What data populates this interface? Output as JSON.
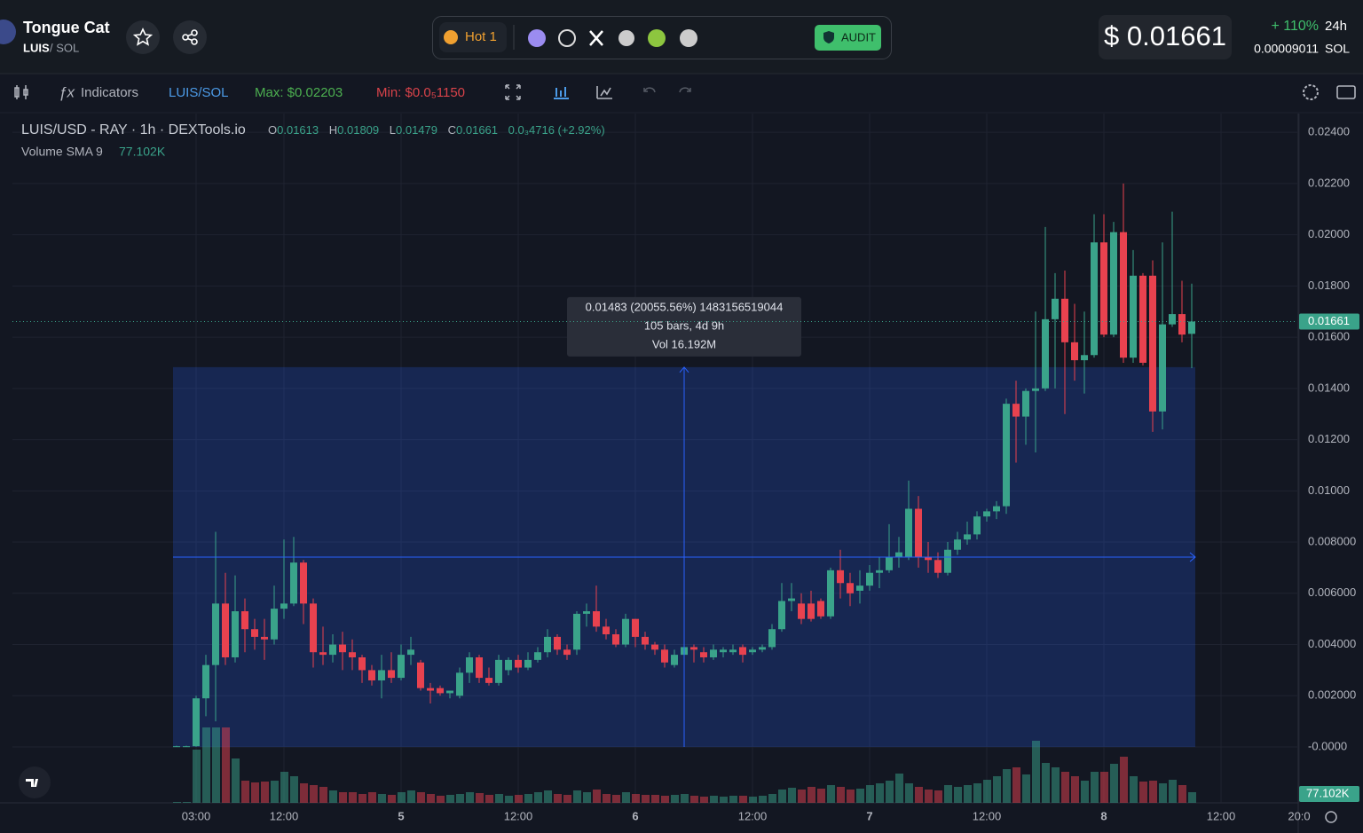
{
  "header": {
    "token_name": "Tongue Cat",
    "symbol": "LUIS",
    "pair": "/ SOL",
    "hot": "Hot 1",
    "audit": "AUDIT",
    "price": "$ 0.01661",
    "change": "+ 110%",
    "period": "24h",
    "price_native": "0.00009011",
    "native": "SOL"
  },
  "toolbar": {
    "indicators": "Indicators",
    "pair": "LUIS/SOL",
    "max": "Max: $0.02203",
    "min": "Min: $0.0₅1150"
  },
  "chart_data": {
    "type": "candlestick",
    "title": "LUIS/USD - RAY · 1h · DEXTools.io",
    "ohlc_letters": [
      "O",
      "H",
      "L",
      "C"
    ],
    "change_label": "0.0₃4716 (+2.92%)",
    "volume_label": "Volume SMA 9",
    "volume_sma": 77102,
    "volume_sma_label": "77.102K",
    "up_color": "#3aa38a",
    "down_color": "#e8424f",
    "categories": [
      null,
      null,
      "03:00",
      null,
      null,
      null,
      null,
      null,
      null,
      null,
      null,
      "12:00",
      null,
      null,
      null,
      null,
      null,
      null,
      null,
      null,
      null,
      null,
      null,
      "5",
      null,
      null,
      null,
      null,
      null,
      null,
      null,
      null,
      null,
      null,
      null,
      "12:00",
      null,
      null,
      null,
      null,
      null,
      null,
      null,
      null,
      null,
      null,
      null,
      "6",
      null,
      null,
      null,
      null,
      null,
      null,
      null,
      null,
      null,
      null,
      null,
      "12:00",
      null,
      null,
      null,
      null,
      null,
      null,
      null,
      null,
      null,
      null,
      null,
      "7",
      null,
      null,
      null,
      null,
      null,
      null,
      null,
      null,
      null,
      null,
      null,
      "12:00",
      null,
      null,
      null,
      null,
      null,
      null,
      null,
      null,
      null,
      null,
      null,
      "8",
      null,
      null,
      null,
      null,
      null,
      null,
      null,
      null,
      null,
      null,
      null,
      "12:00",
      null,
      null,
      null,
      null,
      null,
      null,
      null,
      "20:0"
    ],
    "open": [
      3e-05,
      3e-05,
      3e-05,
      0.0019,
      0.0032,
      0.0056,
      0.0035,
      0.0053,
      0.0046,
      0.0043,
      0.0042,
      0.0054,
      0.0056,
      0.0072,
      0.0056,
      0.0037,
      0.0036,
      0.004,
      0.0037,
      0.0035,
      0.003,
      0.0026,
      0.003,
      0.0027,
      0.0036,
      0.0033,
      0.0023,
      0.0023,
      0.0021,
      0.002,
      0.0029,
      0.0035,
      0.0027,
      0.0025,
      0.003,
      0.0034,
      0.0031,
      0.0034,
      0.0037,
      0.0043,
      0.0038,
      0.0038,
      0.0052,
      0.0053,
      0.0047,
      0.0044,
      0.004,
      0.005,
      0.0043,
      0.004,
      0.0038,
      0.0032,
      0.0036,
      0.0039,
      0.0037,
      0.0035,
      0.0037,
      0.0037,
      0.0039,
      0.0037,
      0.0038,
      0.0039,
      0.0046,
      0.0057,
      0.0056,
      0.0056,
      0.0057,
      0.0051,
      0.0069,
      0.0064,
      0.0061,
      0.0063,
      0.0068,
      0.0069,
      0.0074,
      0.0074,
      0.0093,
      0.0074,
      0.0073,
      0.0068,
      0.0077,
      0.0081,
      0.0083,
      0.009,
      0.0092,
      0.0094,
      0.0134,
      0.0129,
      0.0139,
      0.014,
      0.0167,
      0.0175,
      0.0158,
      0.0151,
      0.0153,
      0.0197,
      0.0161,
      0.0201,
      0.0152,
      0.0184,
      0.0184,
      0.0131,
      0.0165,
      0.0169,
      0.01613,
      null,
      null,
      null,
      null,
      null,
      null,
      null,
      null,
      null,
      null,
      null
    ],
    "high": [
      5e-05,
      5e-05,
      0.002,
      0.0036,
      0.0084,
      0.0068,
      0.0067,
      0.0058,
      0.005,
      0.005,
      0.0063,
      0.0081,
      0.0082,
      0.0073,
      0.0058,
      0.0047,
      0.0044,
      0.0045,
      0.0042,
      0.0036,
      0.0032,
      0.0036,
      0.0037,
      0.004,
      0.0043,
      0.0034,
      0.0025,
      0.0024,
      0.0022,
      0.0031,
      0.0037,
      0.0036,
      0.0031,
      0.0036,
      0.0035,
      0.0036,
      0.0037,
      0.0039,
      0.0046,
      0.0044,
      0.004,
      0.0053,
      0.0056,
      0.0063,
      0.005,
      0.0046,
      0.0052,
      0.005,
      0.0045,
      0.0041,
      0.004,
      0.0038,
      0.0042,
      0.004,
      0.0039,
      0.004,
      0.0039,
      0.004,
      0.004,
      0.0039,
      0.004,
      0.0048,
      0.0064,
      0.0064,
      0.006,
      0.0061,
      0.0058,
      0.007,
      0.0077,
      0.0068,
      0.0069,
      0.0071,
      0.0074,
      0.0087,
      0.0082,
      0.0104,
      0.0098,
      0.008,
      0.0076,
      0.008,
      0.0084,
      0.0088,
      0.0092,
      0.0093,
      0.0096,
      0.0136,
      0.0143,
      0.014,
      0.017,
      0.0203,
      0.0185,
      0.0186,
      0.0173,
      0.017,
      0.0208,
      0.0208,
      0.0205,
      0.022,
      0.0194,
      0.0185,
      0.019,
      0.0197,
      0.0209,
      0.0182,
      0.01809,
      null,
      null,
      null,
      null,
      null,
      null,
      null,
      null,
      null,
      null,
      null
    ],
    "low": [
      1e-05,
      1e-05,
      1e-05,
      0.0012,
      0.001,
      0.0032,
      0.0033,
      0.0037,
      0.0038,
      0.0034,
      0.004,
      0.005,
      0.0055,
      0.0048,
      0.0031,
      0.0032,
      0.0033,
      0.003,
      0.003,
      0.0025,
      0.0024,
      0.0019,
      0.0025,
      0.0026,
      0.0032,
      0.0022,
      0.0017,
      0.002,
      0.0019,
      0.0019,
      0.0025,
      0.0025,
      0.0024,
      0.0024,
      0.0028,
      0.0029,
      0.003,
      0.0033,
      0.0035,
      0.0036,
      0.0034,
      0.0036,
      0.0047,
      0.0045,
      0.0042,
      0.0039,
      0.0039,
      0.0039,
      0.0038,
      0.0036,
      0.0031,
      0.0031,
      0.0032,
      0.0033,
      0.0033,
      0.0034,
      0.0035,
      0.0036,
      0.0033,
      0.0036,
      0.0037,
      0.0038,
      0.0045,
      0.0053,
      0.0048,
      0.0049,
      0.005,
      0.005,
      0.0058,
      0.0055,
      0.0056,
      0.0061,
      0.0062,
      0.0068,
      0.007,
      0.0073,
      0.007,
      0.0068,
      0.0066,
      0.0067,
      0.0075,
      0.0079,
      0.0081,
      0.0088,
      0.0089,
      0.0091,
      0.0111,
      0.0118,
      0.0115,
      0.0139,
      0.014,
      0.013,
      0.0143,
      0.0138,
      0.0152,
      0.016,
      0.016,
      0.015,
      0.015,
      0.0149,
      0.0123,
      0.0124,
      0.0164,
      0.0158,
      0.01479,
      null,
      null,
      null,
      null,
      null,
      null,
      null,
      null,
      null,
      null,
      null
    ],
    "close": [
      3e-05,
      3e-05,
      0.0019,
      0.0032,
      0.0056,
      0.0035,
      0.0053,
      0.0046,
      0.0043,
      0.0042,
      0.0054,
      0.0056,
      0.0072,
      0.0056,
      0.0037,
      0.0036,
      0.004,
      0.0037,
      0.0035,
      0.003,
      0.0026,
      0.003,
      0.0027,
      0.0036,
      0.0038,
      0.0023,
      0.0022,
      0.0021,
      0.0022,
      0.0029,
      0.0035,
      0.0027,
      0.0025,
      0.0034,
      0.0034,
      0.0031,
      0.0034,
      0.0037,
      0.0043,
      0.0038,
      0.0036,
      0.0052,
      0.0053,
      0.0047,
      0.0044,
      0.004,
      0.005,
      0.0043,
      0.004,
      0.0038,
      0.0033,
      0.0036,
      0.0039,
      0.0038,
      0.0035,
      0.0038,
      0.0038,
      0.0038,
      0.0036,
      0.0038,
      0.0039,
      0.0046,
      0.0057,
      0.0058,
      0.005,
      0.005,
      0.0051,
      0.0069,
      0.0064,
      0.006,
      0.0063,
      0.0068,
      0.0069,
      0.0074,
      0.0076,
      0.0093,
      0.0074,
      0.0073,
      0.0068,
      0.0077,
      0.0081,
      0.0083,
      0.009,
      0.0092,
      0.0094,
      0.0134,
      0.0129,
      0.0139,
      0.014,
      0.0167,
      0.0175,
      0.0158,
      0.0151,
      0.0153,
      0.0197,
      0.0161,
      0.0201,
      0.0152,
      0.0184,
      0.015,
      0.0131,
      0.0165,
      0.0169,
      0.0161,
      0.01661,
      null,
      null,
      null,
      null,
      null,
      null,
      null,
      null,
      null,
      null,
      null
    ],
    "volume": [
      7700,
      7700,
      462000,
      654500,
      654500,
      654500,
      385000,
      192500,
      177100,
      184800,
      192500,
      269500,
      231000,
      169400,
      154000,
      138600,
      107800,
      92400,
      92400,
      77000,
      92400,
      77000,
      69300,
      92400,
      107800,
      92400,
      77000,
      61600,
      69300,
      77000,
      92400,
      84700,
      69300,
      77000,
      61600,
      69300,
      77000,
      92400,
      107800,
      77000,
      69300,
      107800,
      92400,
      115500,
      77000,
      69300,
      92400,
      77000,
      69300,
      69300,
      61600,
      69300,
      77000,
      61600,
      53900,
      61600,
      53900,
      61600,
      61600,
      53900,
      61600,
      77000,
      115500,
      130900,
      115500,
      138600,
      123200,
      154000,
      138600,
      115500,
      123200,
      154000,
      169400,
      192500,
      254100,
      169400,
      138600,
      115500,
      107800,
      154000,
      138600,
      154000,
      169400,
      200200,
      231000,
      292600,
      308000,
      246400,
      539000,
      346500,
      308000,
      269500,
      231000,
      192500,
      269500,
      269500,
      338800,
      400400,
      231000,
      184800,
      192500,
      169400,
      200200,
      154000,
      92400,
      null,
      null,
      null,
      null,
      null,
      null,
      null,
      null,
      null,
      null,
      null
    ],
    "vlim": [
      0,
      770000
    ],
    "ylim": [
      -0.00218,
      0.02473
    ],
    "yticks": [
      {
        "value": 0.024,
        "label": "0.02400"
      },
      {
        "value": 0.022,
        "label": "0.02200"
      },
      {
        "value": 0.02,
        "label": "0.02000"
      },
      {
        "value": 0.018,
        "label": "0.01800"
      },
      {
        "value": 0.016,
        "label": "0.01600"
      },
      {
        "value": 0.014,
        "label": "0.01400"
      },
      {
        "value": 0.012,
        "label": "0.01200"
      },
      {
        "value": 0.01,
        "label": "0.01000"
      },
      {
        "value": 0.008,
        "label": "0.008000"
      },
      {
        "value": 0.006,
        "label": "0.006000"
      },
      {
        "value": 0.004,
        "label": "0.004000"
      },
      {
        "value": 0.002,
        "label": "0.002000"
      },
      {
        "value": 0,
        "label": "-0.0000"
      }
    ],
    "grid": true,
    "measure": {
      "low": 0,
      "high": 0.01483,
      "label": "0.01483 (20055.56%) 1483156519044",
      "bars": "105 bars, 4d 9h",
      "volume": "Vol 16.192M"
    }
  }
}
